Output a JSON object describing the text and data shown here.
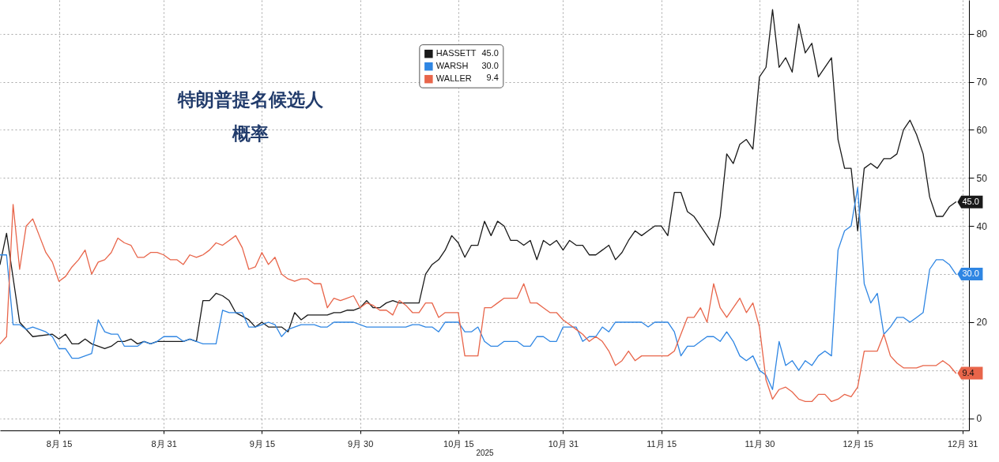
{
  "chart_data": {
    "type": "line",
    "title": "特朗普提名候选人",
    "subtitle": "概率",
    "xlabel": "2025",
    "xlim": [
      "2025-08-06",
      "2026-01-01"
    ],
    "xticks": [
      {
        "value": "2025-08-15",
        "label": "8月 15"
      },
      {
        "value": "2025-08-31",
        "label": "8月 31"
      },
      {
        "value": "2025-09-15",
        "label": "9月 15"
      },
      {
        "value": "2025-09-30",
        "label": "9月 30"
      },
      {
        "value": "2025-10-15",
        "label": "10月 15"
      },
      {
        "value": "2025-10-31",
        "label": "10月 31"
      },
      {
        "value": "2025-11-15",
        "label": "11月 15"
      },
      {
        "value": "2025-11-30",
        "label": "11月 30"
      },
      {
        "value": "2025-12-15",
        "label": "12月 15"
      },
      {
        "value": "2025-12-31",
        "label": "12月 31"
      }
    ],
    "ylim": [
      -2.5,
      87
    ],
    "yticks": [
      0,
      {
        "value": 10,
        "label": null
      },
      20,
      {
        "value": 30,
        "label": null
      },
      40,
      50,
      60,
      70,
      80
    ],
    "grid": true,
    "legend": "top",
    "series": [
      {
        "name": "HASSETT",
        "color": "#1a1a1a",
        "x": [
          "2025-08-06",
          "2025-08-07",
          "2025-08-09",
          "2025-08-11",
          "2025-08-14",
          "2025-08-15",
          "2025-08-16",
          "2025-08-17",
          "2025-08-18",
          "2025-08-19",
          "2025-08-20",
          "2025-08-22",
          "2025-08-23",
          "2025-08-24",
          "2025-08-25",
          "2025-08-26",
          "2025-08-27",
          "2025-08-28",
          "2025-08-29",
          "2025-08-30",
          "2025-09-03",
          "2025-09-04",
          "2025-09-05",
          "2025-09-06",
          "2025-09-07",
          "2025-09-08",
          "2025-09-09",
          "2025-09-10",
          "2025-09-11",
          "2025-09-13",
          "2025-09-14",
          "2025-09-15",
          "2025-09-16",
          "2025-09-18",
          "2025-09-19",
          "2025-09-20",
          "2025-09-21",
          "2025-09-22",
          "2025-09-25",
          "2025-09-26",
          "2025-09-27",
          "2025-09-28",
          "2025-09-29",
          "2025-09-30",
          "2025-10-01",
          "2025-10-02",
          "2025-10-03",
          "2025-10-04",
          "2025-10-05",
          "2025-10-06",
          "2025-10-09",
          "2025-10-10",
          "2025-10-11",
          "2025-10-12",
          "2025-10-13",
          "2025-10-14",
          "2025-10-15",
          "2025-10-16",
          "2025-10-17",
          "2025-10-18",
          "2025-10-19",
          "2025-10-20",
          "2025-10-21",
          "2025-10-22",
          "2025-10-23",
          "2025-10-24",
          "2025-10-25",
          "2025-10-26",
          "2025-10-27",
          "2025-10-28",
          "2025-10-29",
          "2025-10-30",
          "2025-10-31",
          "2025-11-01",
          "2025-11-02",
          "2025-11-03",
          "2025-11-04",
          "2025-11-05",
          "2025-11-06",
          "2025-11-07",
          "2025-11-08",
          "2025-11-09",
          "2025-11-10",
          "2025-11-11",
          "2025-11-12",
          "2025-11-13",
          "2025-11-14",
          "2025-11-15",
          "2025-11-16",
          "2025-11-17",
          "2025-11-18",
          "2025-11-19",
          "2025-11-20",
          "2025-11-21",
          "2025-11-23",
          "2025-11-24",
          "2025-11-25",
          "2025-11-26",
          "2025-11-27",
          "2025-11-28",
          "2025-11-29",
          "2025-11-30",
          "2025-12-01",
          "2025-12-02",
          "2025-12-03",
          "2025-12-04",
          "2025-12-05",
          "2025-12-06",
          "2025-12-07",
          "2025-12-08",
          "2025-12-09",
          "2025-12-11",
          "2025-12-12",
          "2025-12-13",
          "2025-12-14",
          "2025-12-15",
          "2025-12-16",
          "2025-12-17",
          "2025-12-18",
          "2025-12-19",
          "2025-12-20",
          "2025-12-21",
          "2025-12-22",
          "2025-12-23",
          "2025-12-24",
          "2025-12-25",
          "2025-12-26",
          "2025-12-27",
          "2025-12-28",
          "2025-12-29",
          "2025-12-30"
        ],
        "values": [
          32,
          38.5,
          20,
          17,
          17.5,
          16.5,
          17.5,
          15.5,
          15.5,
          16.5,
          15.5,
          14.5,
          15,
          16,
          16,
          16.5,
          15.5,
          16,
          15.5,
          16,
          16,
          16.5,
          16,
          24.5,
          24.5,
          26,
          25.5,
          24.5,
          22,
          20.5,
          19,
          20,
          19,
          19,
          18,
          22,
          20.5,
          21.5,
          21.5,
          22,
          22,
          22.5,
          22.5,
          23,
          24.5,
          23,
          23,
          24,
          24.5,
          24,
          24,
          30,
          32,
          33,
          35,
          38,
          36.5,
          33.5,
          36,
          36,
          41,
          38,
          41,
          40,
          37,
          37,
          36,
          37,
          33,
          37,
          36,
          37,
          35,
          37,
          36,
          36,
          34,
          34,
          35,
          36,
          33,
          34.5,
          37,
          39,
          38,
          39,
          40,
          40,
          38,
          47,
          47,
          43,
          42,
          40,
          36,
          42,
          55,
          53,
          57,
          58,
          56,
          71,
          73,
          85,
          73,
          75,
          72,
          82,
          76,
          78,
          71,
          75,
          58,
          52,
          52,
          39,
          52,
          53,
          52,
          54,
          54,
          55,
          60,
          62,
          59,
          55,
          46,
          42,
          42,
          44,
          45
        ],
        "value_labels": [
          null,
          null,
          null,
          null,
          null,
          null,
          null,
          null,
          null,
          null,
          null,
          null,
          null,
          null,
          null,
          null,
          null,
          null,
          null,
          null,
          null,
          null,
          null,
          null,
          null,
          null,
          null,
          null,
          null,
          null,
          null,
          null,
          null,
          null,
          null,
          null,
          null,
          null,
          null,
          null,
          null,
          null,
          null,
          null,
          null,
          null,
          null,
          null,
          null,
          null,
          null,
          null,
          null,
          null,
          null,
          null,
          null,
          null,
          null,
          null,
          null,
          null,
          null,
          null,
          null,
          null,
          null,
          null,
          null,
          null,
          null,
          null,
          null,
          null,
          null,
          null,
          null,
          null,
          null,
          null,
          null,
          null,
          null,
          null,
          null,
          null,
          null,
          null,
          null,
          null,
          null,
          null,
          null,
          null,
          null,
          null,
          null,
          null,
          null,
          null,
          null,
          null,
          null,
          null,
          null,
          null,
          null,
          null,
          null,
          null,
          null,
          null,
          null,
          null,
          null,
          null,
          null,
          null,
          null,
          null,
          null,
          null,
          null,
          null,
          null,
          null,
          null,
          null,
          null,
          null,
          "45.0"
        ]
      },
      {
        "name": "WARSH",
        "color": "#2f86e3",
        "x": [
          "2025-08-06",
          "2025-08-07",
          "2025-08-08",
          "2025-08-09",
          "2025-08-10",
          "2025-08-11",
          "2025-08-12",
          "2025-08-13",
          "2025-08-14",
          "2025-08-15",
          "2025-08-16",
          "2025-08-17",
          "2025-08-18",
          "2025-08-19",
          "2025-08-20",
          "2025-08-21",
          "2025-08-22",
          "2025-08-23",
          "2025-08-24",
          "2025-08-25",
          "2025-08-26",
          "2025-08-27",
          "2025-08-28",
          "2025-08-29",
          "2025-08-30",
          "2025-08-31",
          "2025-09-02",
          "2025-09-03",
          "2025-09-04",
          "2025-09-05",
          "2025-09-06",
          "2025-09-08",
          "2025-09-09",
          "2025-09-10",
          "2025-09-12",
          "2025-09-13",
          "2025-09-14",
          "2025-09-15",
          "2025-09-16",
          "2025-09-17",
          "2025-09-18",
          "2025-09-19",
          "2025-09-20",
          "2025-09-21",
          "2025-09-23",
          "2025-09-24",
          "2025-09-25",
          "2025-09-26",
          "2025-09-29",
          "2025-10-01",
          "2025-10-07",
          "2025-10-08",
          "2025-10-09",
          "2025-10-10",
          "2025-10-11",
          "2025-10-12",
          "2025-10-13",
          "2025-10-15",
          "2025-10-16",
          "2025-10-17",
          "2025-10-18",
          "2025-10-19",
          "2025-10-20",
          "2025-10-21",
          "2025-10-22",
          "2025-10-24",
          "2025-10-25",
          "2025-10-26",
          "2025-10-27",
          "2025-10-28",
          "2025-10-29",
          "2025-10-30",
          "2025-10-31",
          "2025-11-02",
          "2025-11-03",
          "2025-11-04",
          "2025-11-05",
          "2025-11-06",
          "2025-11-07",
          "2025-11-08",
          "2025-11-12",
          "2025-11-13",
          "2025-11-14",
          "2025-11-16",
          "2025-11-17",
          "2025-11-18",
          "2025-11-19",
          "2025-11-20",
          "2025-11-21",
          "2025-11-22",
          "2025-11-23",
          "2025-11-24",
          "2025-11-25",
          "2025-11-26",
          "2025-11-27",
          "2025-11-28",
          "2025-11-29",
          "2025-11-30",
          "2025-12-01",
          "2025-12-02",
          "2025-12-03",
          "2025-12-04",
          "2025-12-05",
          "2025-12-06",
          "2025-12-07",
          "2025-12-08",
          "2025-12-09",
          "2025-12-10",
          "2025-12-11",
          "2025-12-12",
          "2025-12-13",
          "2025-12-14",
          "2025-12-15",
          "2025-12-16",
          "2025-12-17",
          "2025-12-18",
          "2025-12-19",
          "2025-12-20",
          "2025-12-21",
          "2025-12-22",
          "2025-12-23",
          "2025-12-24",
          "2025-12-25",
          "2025-12-26",
          "2025-12-27",
          "2025-12-28",
          "2025-12-29",
          "2025-12-30"
        ],
        "values": [
          34,
          34,
          19.5,
          19.5,
          18.5,
          19,
          18.5,
          18,
          17,
          14.5,
          14.5,
          12.5,
          12.5,
          13,
          13.5,
          20.5,
          18,
          17.5,
          17.5,
          15,
          15,
          15,
          16,
          15.5,
          16,
          17,
          17,
          16,
          16.5,
          16,
          15.5,
          15.5,
          22.5,
          22,
          22,
          19,
          19,
          19.5,
          20,
          19.5,
          17,
          18.5,
          19,
          19.5,
          19.5,
          19,
          19,
          20,
          20,
          19,
          19,
          19.5,
          19.5,
          19,
          19,
          18,
          20,
          20,
          18,
          18,
          19,
          16,
          15,
          15,
          16,
          16,
          15,
          15,
          17,
          17,
          16,
          16,
          19,
          19,
          16,
          17,
          17,
          19,
          18,
          20,
          20,
          19,
          20,
          20,
          18,
          13,
          15,
          15,
          16,
          17,
          17,
          16,
          18,
          16,
          13,
          12,
          13,
          10,
          9,
          6,
          16,
          11,
          12,
          10,
          12,
          11,
          13,
          14,
          13,
          35,
          39,
          40,
          48,
          28,
          24,
          26,
          17.5,
          19,
          21,
          21,
          20,
          21,
          22,
          31,
          33,
          33,
          32,
          30
        ],
        "value_labels": [
          null,
          null,
          null,
          null,
          null,
          null,
          null,
          null,
          null,
          null,
          null,
          null,
          null,
          null,
          null,
          null,
          null,
          null,
          null,
          null,
          null,
          null,
          null,
          null,
          null,
          null,
          null,
          null,
          null,
          null,
          null,
          null,
          null,
          null,
          null,
          null,
          null,
          null,
          null,
          null,
          null,
          null,
          null,
          null,
          null,
          null,
          null,
          null,
          null,
          null,
          null,
          null,
          null,
          null,
          null,
          null,
          null,
          null,
          null,
          null,
          null,
          null,
          null,
          null,
          null,
          null,
          null,
          null,
          null,
          null,
          null,
          null,
          null,
          null,
          null,
          null,
          null,
          null,
          null,
          null,
          null,
          null,
          null,
          null,
          null,
          null,
          null,
          null,
          null,
          null,
          null,
          null,
          null,
          null,
          null,
          null,
          null,
          null,
          null,
          null,
          null,
          null,
          null,
          null,
          null,
          null,
          null,
          null,
          null,
          null,
          null,
          null,
          null,
          null,
          null,
          null,
          null,
          null,
          null,
          null,
          null,
          null,
          null,
          null,
          null,
          null,
          null,
          "30.0"
        ]
      },
      {
        "name": "WALLER",
        "color": "#e8654a",
        "x": [
          "2025-08-06",
          "2025-08-07",
          "2025-08-08",
          "2025-08-09",
          "2025-08-10",
          "2025-08-11",
          "2025-08-12",
          "2025-08-13",
          "2025-08-14",
          "2025-08-15",
          "2025-08-16",
          "2025-08-17",
          "2025-08-18",
          "2025-08-19",
          "2025-08-20",
          "2025-08-21",
          "2025-08-22",
          "2025-08-23",
          "2025-08-24",
          "2025-08-25",
          "2025-08-26",
          "2025-08-27",
          "2025-08-28",
          "2025-08-29",
          "2025-08-30",
          "2025-08-31",
          "2025-09-01",
          "2025-09-02",
          "2025-09-03",
          "2025-09-04",
          "2025-09-05",
          "2025-09-06",
          "2025-09-07",
          "2025-09-08",
          "2025-09-09",
          "2025-09-10",
          "2025-09-11",
          "2025-09-12",
          "2025-09-13",
          "2025-09-14",
          "2025-09-15",
          "2025-09-16",
          "2025-09-17",
          "2025-09-18",
          "2025-09-19",
          "2025-09-20",
          "2025-09-21",
          "2025-09-22",
          "2025-09-23",
          "2025-09-24",
          "2025-09-25",
          "2025-09-26",
          "2025-09-27",
          "2025-09-28",
          "2025-09-29",
          "2025-09-30",
          "2025-10-01",
          "2025-10-02",
          "2025-10-03",
          "2025-10-04",
          "2025-10-05",
          "2025-10-06",
          "2025-10-07",
          "2025-10-08",
          "2025-10-09",
          "2025-10-10",
          "2025-10-11",
          "2025-10-12",
          "2025-10-13",
          "2025-10-15",
          "2025-10-16",
          "2025-10-18",
          "2025-10-19",
          "2025-10-20",
          "2025-10-21",
          "2025-10-22",
          "2025-10-24",
          "2025-10-25",
          "2025-10-26",
          "2025-10-27",
          "2025-10-28",
          "2025-10-29",
          "2025-10-30",
          "2025-10-31",
          "2025-11-01",
          "2025-11-02",
          "2025-11-03",
          "2025-11-04",
          "2025-11-05",
          "2025-11-06",
          "2025-11-07",
          "2025-11-08",
          "2025-11-09",
          "2025-11-10",
          "2025-11-11",
          "2025-11-12",
          "2025-11-16",
          "2025-11-17",
          "2025-11-18",
          "2025-11-19",
          "2025-11-20",
          "2025-11-21",
          "2025-11-22",
          "2025-11-23",
          "2025-11-24",
          "2025-11-25",
          "2025-11-26",
          "2025-11-27",
          "2025-11-28",
          "2025-11-29",
          "2025-11-30",
          "2025-12-01",
          "2025-12-02",
          "2025-12-03",
          "2025-12-04",
          "2025-12-05",
          "2025-12-06",
          "2025-12-07",
          "2025-12-08",
          "2025-12-09",
          "2025-12-10",
          "2025-12-11",
          "2025-12-12",
          "2025-12-13",
          "2025-12-14",
          "2025-12-15",
          "2025-12-16",
          "2025-12-17",
          "2025-12-18",
          "2025-12-19",
          "2025-12-20",
          "2025-12-21",
          "2025-12-22",
          "2025-12-23",
          "2025-12-24",
          "2025-12-25",
          "2025-12-26",
          "2025-12-27",
          "2025-12-28",
          "2025-12-29",
          "2025-12-30"
        ],
        "values": [
          15.5,
          17,
          44.5,
          31,
          40,
          41.5,
          38,
          34.5,
          32.5,
          28.5,
          29.5,
          31.5,
          33,
          35,
          30,
          32.5,
          33,
          34.5,
          37.5,
          36.5,
          36,
          33.5,
          33.5,
          34.5,
          34.5,
          34,
          33,
          33,
          32,
          34,
          33.5,
          34,
          35,
          36.5,
          36,
          37,
          38,
          35.5,
          31,
          31.5,
          34.5,
          32,
          33.5,
          30,
          29,
          28.5,
          29,
          29,
          28,
          28,
          23,
          25,
          24.5,
          25,
          25.5,
          23,
          24,
          23.5,
          22.5,
          22.5,
          21.5,
          24.5,
          23.5,
          22,
          22,
          24,
          24,
          21,
          22,
          22,
          13,
          13,
          23,
          23,
          24,
          25,
          25,
          28,
          24,
          24,
          23,
          22,
          22,
          20.5,
          19.5,
          18.5,
          17.5,
          16,
          17,
          16,
          14,
          11,
          12,
          14,
          12,
          13,
          13,
          14,
          17.5,
          21,
          21,
          23,
          20,
          28,
          23,
          21,
          23,
          25,
          22,
          24,
          19,
          8,
          4,
          6,
          6.5,
          5.5,
          4,
          3.5,
          3.5,
          5,
          5,
          3.5,
          4,
          5,
          4.5,
          6.5,
          14,
          14,
          14,
          17.5,
          13,
          11.5,
          10.5,
          10.5,
          10.5,
          11,
          11,
          11,
          12,
          11,
          9.4
        ],
        "value_labels": [
          null,
          null,
          null,
          null,
          null,
          null,
          null,
          null,
          null,
          null,
          null,
          null,
          null,
          null,
          null,
          null,
          null,
          null,
          null,
          null,
          null,
          null,
          null,
          null,
          null,
          null,
          null,
          null,
          null,
          null,
          null,
          null,
          null,
          null,
          null,
          null,
          null,
          null,
          null,
          null,
          null,
          null,
          null,
          null,
          null,
          null,
          null,
          null,
          null,
          null,
          null,
          null,
          null,
          null,
          null,
          null,
          null,
          null,
          null,
          null,
          null,
          null,
          null,
          null,
          null,
          null,
          null,
          null,
          null,
          null,
          null,
          null,
          null,
          null,
          null,
          null,
          null,
          null,
          null,
          null,
          null,
          null,
          null,
          null,
          null,
          null,
          null,
          null,
          null,
          null,
          null,
          null,
          null,
          null,
          null,
          null,
          null,
          null,
          null,
          null,
          null,
          null,
          null,
          null,
          null,
          null,
          null,
          null,
          null,
          null,
          null,
          null,
          null,
          null,
          null,
          null,
          null,
          null,
          null,
          null,
          null,
          null,
          null,
          null,
          null,
          null,
          null,
          null,
          null,
          null,
          null,
          null,
          null,
          null,
          null,
          null,
          null,
          null,
          null,
          null,
          "9.4"
        ]
      }
    ]
  }
}
